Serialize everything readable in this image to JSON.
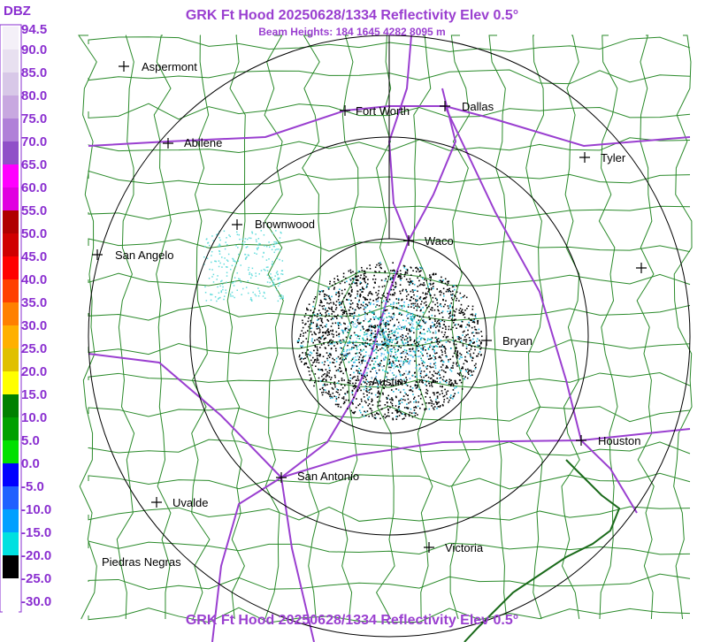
{
  "header": {
    "title": "GRK Ft Hood 20250628/1334 Reflectivity Elev 0.5°",
    "subtitle": "Beam Heights: 184 1645 4282 8095 m",
    "footer": "GRK Ft Hood 20250628/1334 Reflectivity Elev 0.5°"
  },
  "legend": {
    "unit": "DBZ",
    "labels": [
      "94.5",
      "90.0",
      "85.0",
      "80.0",
      "75.0",
      "70.0",
      "65.0",
      "60.0",
      "55.0",
      "50.0",
      "45.0",
      "40.0",
      "35.0",
      "30.0",
      "25.0",
      "20.0",
      "15.0",
      "10.0",
      "5.0",
      "0.0",
      "-5.0",
      "-10.0",
      "-15.0",
      "-20.0",
      "-25.0",
      "-30.0"
    ]
  },
  "cities": [
    "Aspermont",
    "Abilene",
    "Fort Worth",
    "Dallas",
    "Tyler",
    "Brownwood",
    "Waco",
    "San Angelo",
    "Bryan",
    "Austin",
    "Houston",
    "San Antonio",
    "Uvalde",
    "Victoria",
    "Piedras Negras"
  ]
}
